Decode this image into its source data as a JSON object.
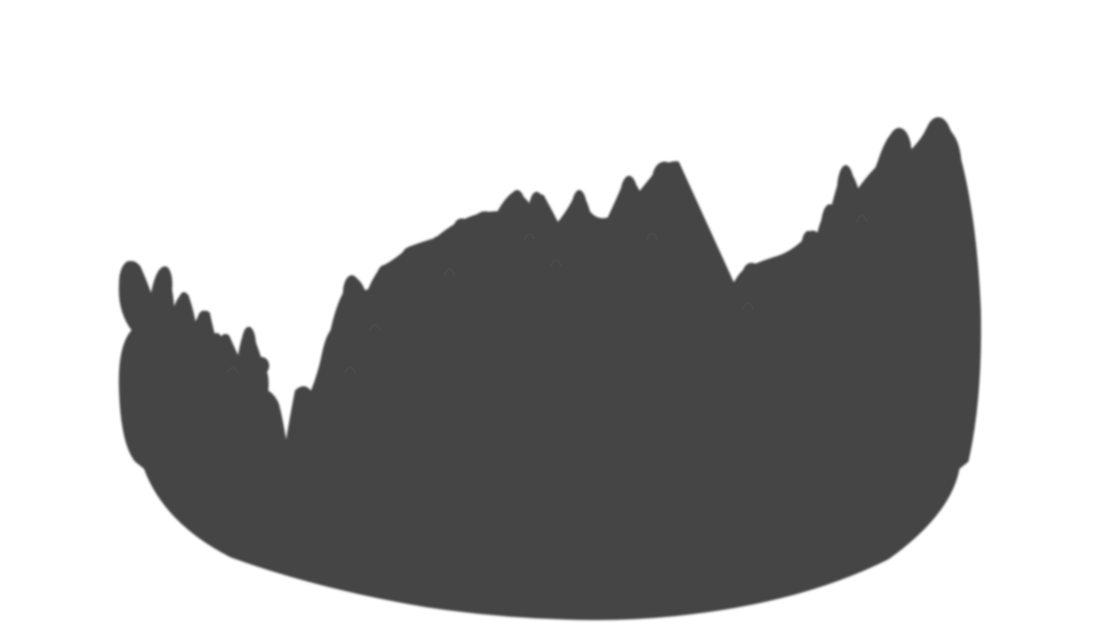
{
  "artwork": {
    "shape": "hair-silhouette-icon",
    "fill_color": "#444444",
    "background_color": "#ffffff"
  }
}
